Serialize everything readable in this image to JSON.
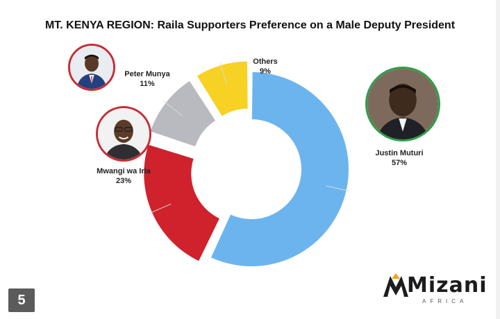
{
  "chart_data": {
    "type": "donut",
    "title": "MT. KENYA REGION: Raila Supporters Preference on a Male Deputy President",
    "slices": [
      {
        "name": "Justin Muturi",
        "value": 57,
        "label": "57%",
        "color": "#6cb4ee"
      },
      {
        "name": "Mwangi wa Iria",
        "value": 23,
        "label": "23%",
        "color": "#cf222c"
      },
      {
        "name": "Peter Munya",
        "value": 11,
        "label": "11%",
        "color": "#b9babf"
      },
      {
        "name": "Others",
        "value": 9,
        "label": "9%",
        "color": "#f7d124"
      }
    ],
    "legend": "none"
  },
  "page_number": "5",
  "logo": {
    "word": "Mizani",
    "sub": "AFRICA"
  },
  "colors": {
    "photo_border_red": "#c62d35",
    "photo_border_green": "#2e9e48"
  }
}
